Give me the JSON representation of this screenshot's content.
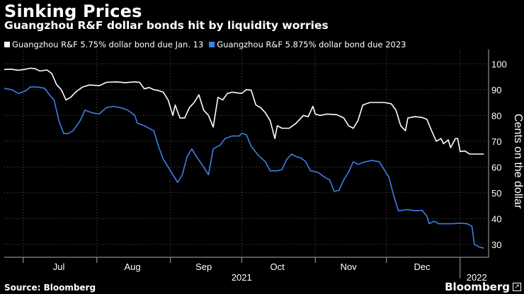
{
  "title": "Sinking Prices",
  "subtitle": "Guangzhou R&F dollar bonds hit by liquidity worries",
  "source": "Source: Bloomberg",
  "brand": "Bloomberg",
  "colors": {
    "background": "#000000",
    "series_white": "#ffffff",
    "series_blue": "#3d7fe6",
    "grid": "#555555"
  },
  "chart_data": {
    "type": "line",
    "title": "Sinking Prices",
    "subtitle": "Guangzhou R&F dollar bonds hit by liquidity worries",
    "ylabel": "Cents on the dollar",
    "ylim": [
      25,
      105
    ],
    "yticks": [
      30,
      40,
      50,
      60,
      70,
      80,
      90,
      100
    ],
    "xlim": [
      "2021-06-23",
      "2022-01-13"
    ],
    "month_ticks": [
      "2021-07-01",
      "2021-08-01",
      "2021-09-01",
      "2021-10-01",
      "2021-11-01",
      "2021-12-01",
      "2022-01-01"
    ],
    "month_labels": [
      {
        "label": "Jul",
        "date": "2021-07-16"
      },
      {
        "label": "Aug",
        "date": "2021-08-16"
      },
      {
        "label": "Sep",
        "date": "2021-09-15"
      },
      {
        "label": "Oct",
        "date": "2021-10-16"
      },
      {
        "label": "Nov",
        "date": "2021-11-15"
      },
      {
        "label": "Dec",
        "date": "2021-12-16"
      }
    ],
    "year_labels": [
      {
        "label": "2021",
        "date": "2021-10-01"
      },
      {
        "label": "2022",
        "date": "2022-01-08"
      }
    ],
    "grid": true,
    "legend": "top-left",
    "series": [
      {
        "name": "Guangzhou R&F 5.75% dollar bond due Jan. 13",
        "color": "#ffffff",
        "points": [
          [
            "2021-06-23",
            97.8
          ],
          [
            "2021-06-26",
            97.9
          ],
          [
            "2021-06-29",
            97.5
          ],
          [
            "2021-07-02",
            97.9
          ],
          [
            "2021-07-04",
            98.3
          ],
          [
            "2021-07-06",
            98.1
          ],
          [
            "2021-07-08",
            97.2
          ],
          [
            "2021-07-11",
            97.6
          ],
          [
            "2021-07-13",
            96.2
          ],
          [
            "2021-07-15",
            92.0
          ],
          [
            "2021-07-17",
            90.0
          ],
          [
            "2021-07-19",
            86.0
          ],
          [
            "2021-07-21",
            87.0
          ],
          [
            "2021-07-23",
            89.0
          ],
          [
            "2021-07-26",
            91.0
          ],
          [
            "2021-07-29",
            91.8
          ],
          [
            "2021-08-02",
            91.5
          ],
          [
            "2021-08-05",
            92.8
          ],
          [
            "2021-08-09",
            93.0
          ],
          [
            "2021-08-13",
            92.7
          ],
          [
            "2021-08-17",
            93.0
          ],
          [
            "2021-08-19",
            92.8
          ],
          [
            "2021-08-21",
            90.3
          ],
          [
            "2021-08-23",
            90.8
          ],
          [
            "2021-08-25",
            90.0
          ],
          [
            "2021-08-27",
            89.6
          ],
          [
            "2021-08-29",
            89.0
          ],
          [
            "2021-08-31",
            86.0
          ],
          [
            "2021-09-02",
            80.0
          ],
          [
            "2021-09-03",
            84.0
          ],
          [
            "2021-09-05",
            79.0
          ],
          [
            "2021-09-07",
            79.0
          ],
          [
            "2021-09-09",
            83.0
          ],
          [
            "2021-09-11",
            85.0
          ],
          [
            "2021-09-13",
            88.0
          ],
          [
            "2021-09-15",
            82.0
          ],
          [
            "2021-09-17",
            80.0
          ],
          [
            "2021-09-19",
            75.5
          ],
          [
            "2021-09-21",
            87.0
          ],
          [
            "2021-09-23",
            86.0
          ],
          [
            "2021-09-25",
            88.5
          ],
          [
            "2021-09-27",
            89.0
          ],
          [
            "2021-10-01",
            88.5
          ],
          [
            "2021-10-03",
            90.0
          ],
          [
            "2021-10-05",
            89.8
          ],
          [
            "2021-10-07",
            84.0
          ],
          [
            "2021-10-09",
            83.0
          ],
          [
            "2021-10-11",
            81.0
          ],
          [
            "2021-10-13",
            78.0
          ],
          [
            "2021-10-15",
            71.0
          ],
          [
            "2021-10-16",
            76.0
          ],
          [
            "2021-10-18",
            75.0
          ],
          [
            "2021-10-21",
            75.0
          ],
          [
            "2021-10-24",
            77.0
          ],
          [
            "2021-10-27",
            80.0
          ],
          [
            "2021-10-29",
            79.5
          ],
          [
            "2021-10-31",
            83.5
          ],
          [
            "2021-11-01",
            80.5
          ],
          [
            "2021-11-03",
            80.0
          ],
          [
            "2021-11-06",
            80.5
          ],
          [
            "2021-11-10",
            80.3
          ],
          [
            "2021-11-13",
            79.0
          ],
          [
            "2021-11-15",
            76.0
          ],
          [
            "2021-11-17",
            75.0
          ],
          [
            "2021-11-19",
            78.0
          ],
          [
            "2021-11-21",
            84.0
          ],
          [
            "2021-11-24",
            85.0
          ],
          [
            "2021-11-27",
            85.0
          ],
          [
            "2021-11-30",
            85.0
          ],
          [
            "2021-12-03",
            84.5
          ],
          [
            "2021-12-05",
            82.0
          ],
          [
            "2021-12-07",
            76.0
          ],
          [
            "2021-12-09",
            74.0
          ],
          [
            "2021-12-10",
            79.0
          ],
          [
            "2021-12-13",
            79.5
          ],
          [
            "2021-12-16",
            79.2
          ],
          [
            "2021-12-18",
            78.5
          ],
          [
            "2021-12-20",
            74.0
          ],
          [
            "2021-12-22",
            70.0
          ],
          [
            "2021-12-24",
            71.0
          ],
          [
            "2021-12-25",
            69.0
          ],
          [
            "2021-12-27",
            70.5
          ],
          [
            "2021-12-28",
            67.5
          ],
          [
            "2021-12-30",
            71.0
          ],
          [
            "2021-12-31",
            71.0
          ],
          [
            "2022-01-01",
            66.0
          ],
          [
            "2022-01-03",
            66.2
          ],
          [
            "2022-01-05",
            65.0
          ],
          [
            "2022-01-08",
            65.0
          ],
          [
            "2022-01-11",
            65.0
          ]
        ]
      },
      {
        "name": "Guangzhou R&F 5.875% dollar bond due 2023",
        "color": "#3d7fe6",
        "points": [
          [
            "2021-06-23",
            90.5
          ],
          [
            "2021-06-26",
            90.0
          ],
          [
            "2021-06-29",
            88.5
          ],
          [
            "2021-07-02",
            89.5
          ],
          [
            "2021-07-04",
            91.0
          ],
          [
            "2021-07-07",
            91.0
          ],
          [
            "2021-07-10",
            90.5
          ],
          [
            "2021-07-12",
            88.0
          ],
          [
            "2021-07-14",
            86.0
          ],
          [
            "2021-07-16",
            78.0
          ],
          [
            "2021-07-18",
            73.0
          ],
          [
            "2021-07-20",
            73.0
          ],
          [
            "2021-07-22",
            74.0
          ],
          [
            "2021-07-25",
            78.0
          ],
          [
            "2021-07-27",
            82.0
          ],
          [
            "2021-07-30",
            81.0
          ],
          [
            "2021-08-02",
            80.5
          ],
          [
            "2021-08-05",
            83.0
          ],
          [
            "2021-08-08",
            83.5
          ],
          [
            "2021-08-11",
            83.0
          ],
          [
            "2021-08-14",
            82.0
          ],
          [
            "2021-08-17",
            80.0
          ],
          [
            "2021-08-18",
            77.0
          ],
          [
            "2021-08-21",
            76.0
          ],
          [
            "2021-08-25",
            74.0
          ],
          [
            "2021-08-27",
            68.0
          ],
          [
            "2021-08-29",
            63.0
          ],
          [
            "2021-09-01",
            58.5
          ],
          [
            "2021-09-04",
            54.0
          ],
          [
            "2021-09-06",
            57.0
          ],
          [
            "2021-09-08",
            64.0
          ],
          [
            "2021-09-10",
            67.0
          ],
          [
            "2021-09-12",
            64.0
          ],
          [
            "2021-09-15",
            60.0
          ],
          [
            "2021-09-17",
            57.0
          ],
          [
            "2021-09-19",
            67.0
          ],
          [
            "2021-09-22",
            68.5
          ],
          [
            "2021-09-24",
            71.0
          ],
          [
            "2021-09-27",
            72.0
          ],
          [
            "2021-09-30",
            72.0
          ],
          [
            "2021-10-01",
            73.0
          ],
          [
            "2021-10-03",
            72.5
          ],
          [
            "2021-10-05",
            68.0
          ],
          [
            "2021-10-08",
            64.5
          ],
          [
            "2021-10-11",
            62.0
          ],
          [
            "2021-10-13",
            58.5
          ],
          [
            "2021-10-16",
            58.5
          ],
          [
            "2021-10-18",
            59.0
          ],
          [
            "2021-10-20",
            63.0
          ],
          [
            "2021-10-22",
            65.0
          ],
          [
            "2021-10-24",
            64.0
          ],
          [
            "2021-10-26",
            63.5
          ],
          [
            "2021-10-28",
            62.0
          ],
          [
            "2021-10-30",
            58.5
          ],
          [
            "2021-11-02",
            58.0
          ],
          [
            "2021-11-05",
            56.0
          ],
          [
            "2021-11-07",
            55.0
          ],
          [
            "2021-11-09",
            50.5
          ],
          [
            "2021-11-11",
            51.0
          ],
          [
            "2021-11-13",
            55.0
          ],
          [
            "2021-11-15",
            58.0
          ],
          [
            "2021-11-17",
            62.0
          ],
          [
            "2021-11-19",
            61.0
          ],
          [
            "2021-11-22",
            62.0
          ],
          [
            "2021-11-25",
            62.5
          ],
          [
            "2021-11-28",
            62.0
          ],
          [
            "2021-11-30",
            59.0
          ],
          [
            "2021-12-02",
            56.0
          ],
          [
            "2021-12-04",
            49.0
          ],
          [
            "2021-12-06",
            43.0
          ],
          [
            "2021-12-10",
            43.5
          ],
          [
            "2021-12-13",
            43.0
          ],
          [
            "2021-12-16",
            43.2
          ],
          [
            "2021-12-18",
            41.0
          ],
          [
            "2021-12-19",
            38.0
          ],
          [
            "2021-12-21",
            39.0
          ],
          [
            "2021-12-23",
            38.0
          ],
          [
            "2021-12-26",
            38.0
          ],
          [
            "2021-12-29",
            38.0
          ],
          [
            "2022-01-01",
            38.2
          ],
          [
            "2022-01-04",
            38.0
          ],
          [
            "2022-01-06",
            37.0
          ],
          [
            "2022-01-07",
            30.0
          ],
          [
            "2022-01-09",
            29.0
          ],
          [
            "2022-01-11",
            28.5
          ]
        ]
      }
    ]
  }
}
